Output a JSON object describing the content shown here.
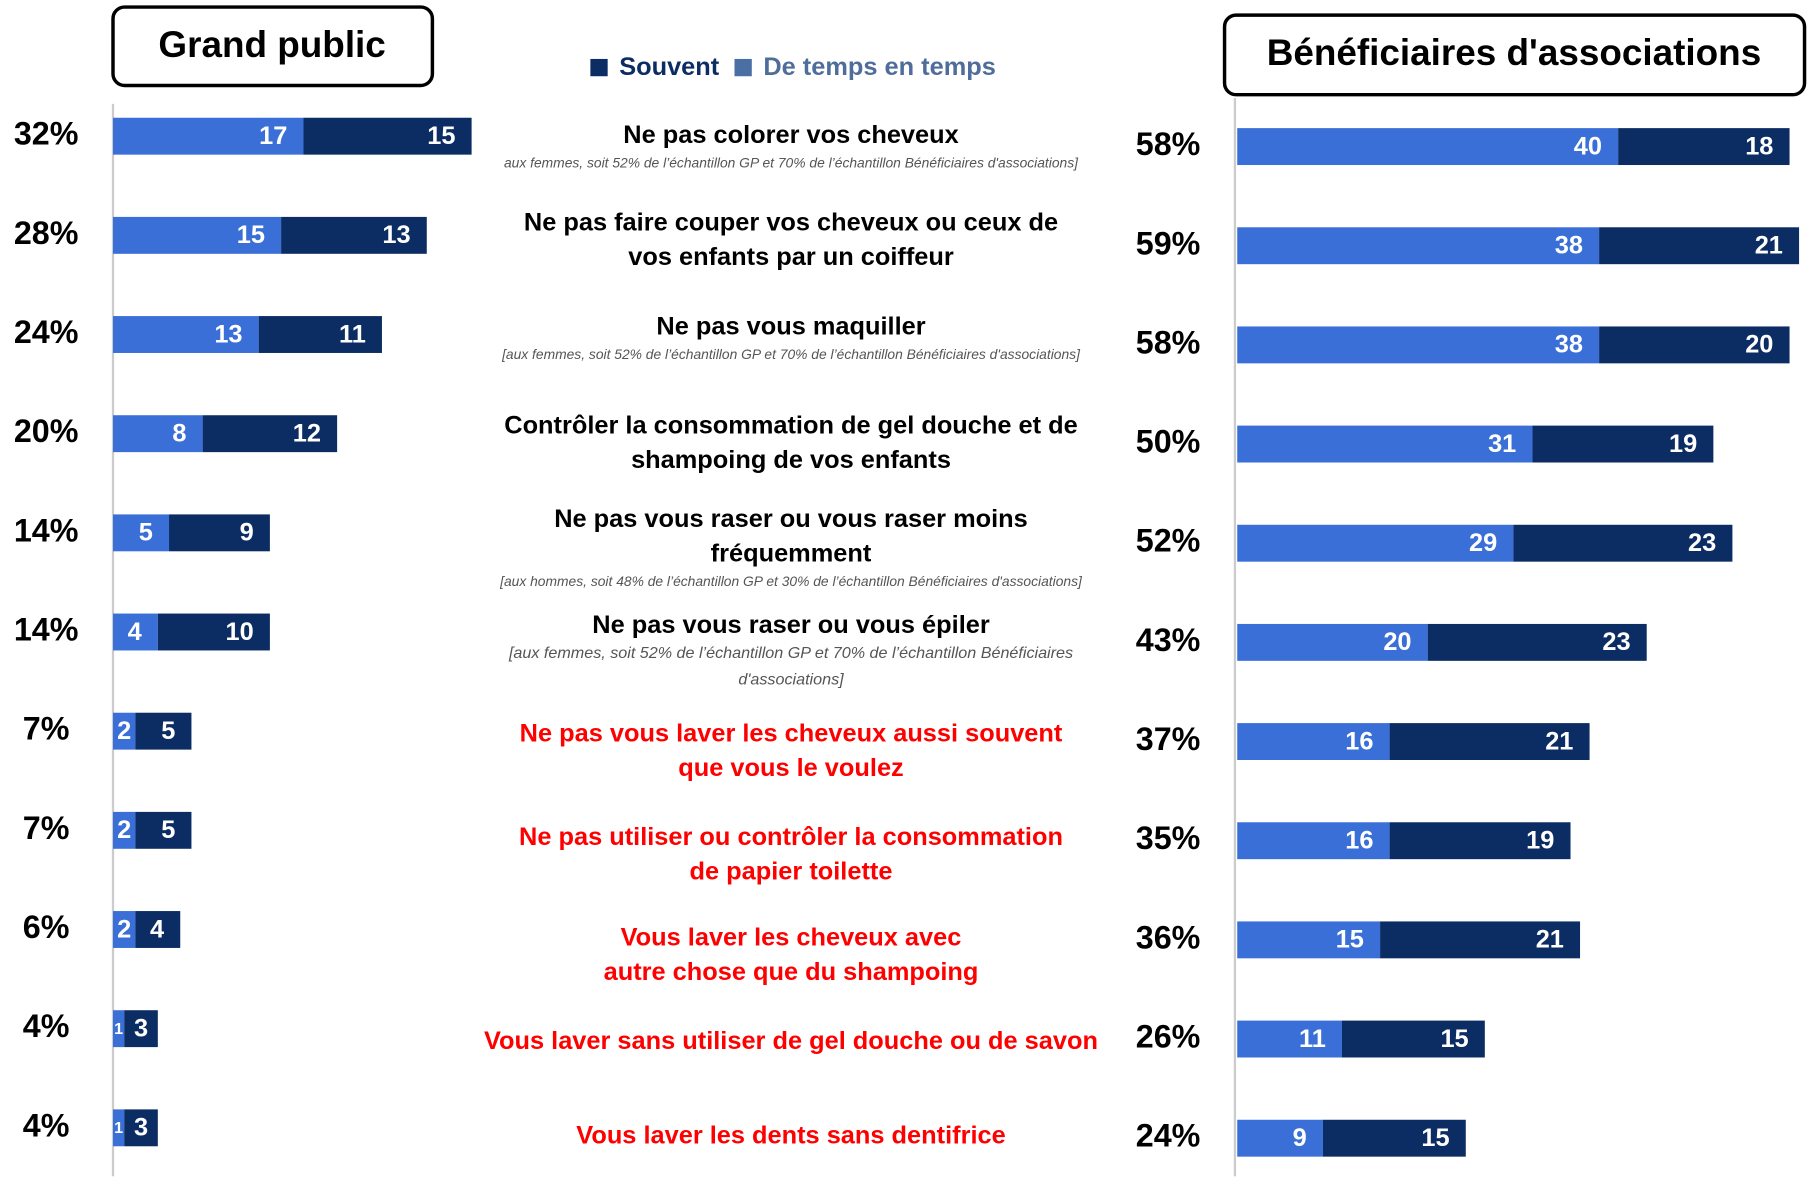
{
  "categories": [
    [
      "Ne pas colorer vos cheveux"
    ],
    [
      "Ne pas faire couper vos cheveux ou ceux de",
      "vos enfants par un coiffeur"
    ],
    [
      "Ne pas vous maquiller"
    ],
    [
      "Contrôler la consommation de gel douche et de",
      "shampoing de vos enfants"
    ],
    [
      "Ne pas vous raser ou vous raser moins",
      "fréquemment"
    ],
    [
      "Ne pas vous raser ou vous épiler"
    ],
    [
      "Ne pas vous laver les cheveux aussi souvent",
      "que vous le voulez"
    ],
    [
      "Ne pas utiliser ou contrôler la consommation",
      "de papier toilette"
    ],
    [
      "Vous laver les cheveux avec",
      "autre chose que du shampoing"
    ],
    [
      "Vous laver sans utiliser de gel douche ou de savon"
    ],
    [
      "Vous laver les dents sans dentifrice"
    ]
  ],
  "notes": [
    [
      "aux femmes, soit 52% de l’échantillon GP et 70% de l’échantillon Bénéficiaires d'associations]"
    ],
    null,
    [
      "[aux femmes, soit 52% de l’échantillon GP et 70% de l’échantillon Bénéficiaires d'associations]"
    ],
    null,
    [
      "[aux hommes, soit 48% de l’échantillon GP et 30% de l’échantillon Bénéficiaires d'associations]"
    ],
    [
      "[aux femmes, soit 52% de l’échantillon GP et 70% de l’échantillon Bénéficiaires",
      "d'associations]"
    ],
    null,
    null,
    null,
    null,
    null
  ],
  "category_colors": [
    "#000000",
    "#000000",
    "#000000",
    "#000000",
    "#000000",
    "#000000",
    "#ff0000",
    "#ff0000",
    "#ff0000",
    "#ff0000",
    "#ff0000"
  ],
  "chart_data": [
    {
      "type": "bar",
      "stacked": true,
      "title": "Grand public",
      "xlim": [
        0,
        32
      ],
      "totals": [
        "32%",
        "28%",
        "24%",
        "20%",
        "14%",
        "14%",
        "7%",
        "7%",
        "6%",
        "4%",
        "4%"
      ],
      "series": [
        {
          "name": "Souvent",
          "color": "#0c2d63",
          "values": [
            15,
            13,
            11,
            12,
            9,
            10,
            5,
            5,
            4,
            3,
            3
          ]
        },
        {
          "name": "De temps en temps",
          "color": "#3a6fd8",
          "values": [
            17,
            15,
            13,
            8,
            5,
            4,
            2,
            2,
            2,
            1,
            1
          ]
        }
      ]
    },
    {
      "type": "bar",
      "stacked": true,
      "title": "Bénéficiaires d'associations",
      "xlim": [
        0,
        58
      ],
      "totals": [
        "58%",
        "59%",
        "58%",
        "50%",
        "52%",
        "43%",
        "37%",
        "35%",
        "36%",
        "26%",
        "24%"
      ],
      "series": [
        {
          "color": "#0c2d63",
          "values": [
            18,
            21,
            20,
            19,
            23,
            23,
            21,
            19,
            21,
            15,
            15
          ]
        },
        {
          "color": "#3a6fd8",
          "values": [
            40,
            38,
            38,
            31,
            29,
            20,
            16,
            16,
            15,
            11,
            9
          ]
        }
      ]
    }
  ]
}
